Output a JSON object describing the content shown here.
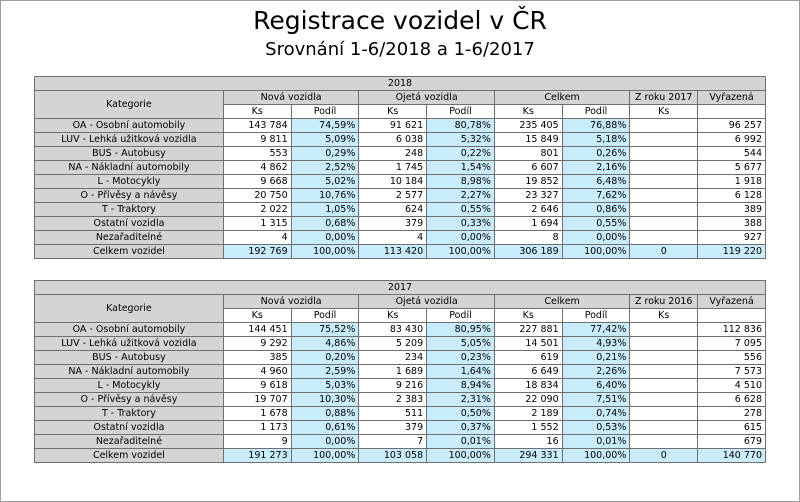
{
  "title": "Registrace vozidel v ČR",
  "subtitle": "Srovnání 1-6/2018 a 1-6/2017",
  "headers": {
    "kategorie": "Kategorie",
    "nova": "Nová vozidla",
    "ojeta": "Ojetá vozidla",
    "celkem": "Celkem",
    "vyrazena": "Vyřazená",
    "ks": "Ks",
    "podil": "Podíl"
  },
  "tables": [
    {
      "year": "2018",
      "zroku": "Z roku 2017",
      "rows": [
        {
          "cat": "OA - Osobní automobily",
          "nk": "143 784",
          "np": "74,59%",
          "ok": "91 621",
          "op": "80,78%",
          "ck": "235 405",
          "cp": "76,88%",
          "zk": "",
          "vk": "96 257"
        },
        {
          "cat": "LUV - Lehká užitková vozidla",
          "nk": "9 811",
          "np": "5,09%",
          "ok": "6 038",
          "op": "5,32%",
          "ck": "15 849",
          "cp": "5,18%",
          "zk": "",
          "vk": "6 992"
        },
        {
          "cat": "BUS - Autobusy",
          "nk": "553",
          "np": "0,29%",
          "ok": "248",
          "op": "0,22%",
          "ck": "801",
          "cp": "0,26%",
          "zk": "",
          "vk": "544"
        },
        {
          "cat": "NA - Nákladní automobily",
          "nk": "4 862",
          "np": "2,52%",
          "ok": "1 745",
          "op": "1,54%",
          "ck": "6 607",
          "cp": "2,16%",
          "zk": "",
          "vk": "5 677"
        },
        {
          "cat": "L - Motocykly",
          "nk": "9 668",
          "np": "5,02%",
          "ok": "10 184",
          "op": "8,98%",
          "ck": "19 852",
          "cp": "6,48%",
          "zk": "",
          "vk": "1 918"
        },
        {
          "cat": "O - Přívěsy a návěsy",
          "nk": "20 750",
          "np": "10,76%",
          "ok": "2 577",
          "op": "2,27%",
          "ck": "23 327",
          "cp": "7,62%",
          "zk": "",
          "vk": "6 128"
        },
        {
          "cat": "T - Traktory",
          "nk": "2 022",
          "np": "1,05%",
          "ok": "624",
          "op": "0,55%",
          "ck": "2 646",
          "cp": "0,86%",
          "zk": "",
          "vk": "389"
        },
        {
          "cat": "Ostatní vozidla",
          "nk": "1 315",
          "np": "0,68%",
          "ok": "379",
          "op": "0,33%",
          "ck": "1 694",
          "cp": "0,55%",
          "zk": "",
          "vk": "388"
        },
        {
          "cat": "Nezařaditelné",
          "nk": "4",
          "np": "0,00%",
          "ok": "4",
          "op": "0,00%",
          "ck": "8",
          "cp": "0,00%",
          "zk": "",
          "vk": "927"
        }
      ],
      "total": {
        "cat": "Celkem vozidel",
        "nk": "192 769",
        "np": "100,00%",
        "ok": "113 420",
        "op": "100,00%",
        "ck": "306 189",
        "cp": "100,00%",
        "zk": "0",
        "vk": "119 220"
      }
    },
    {
      "year": "2017",
      "zroku": "Z roku 2016",
      "rows": [
        {
          "cat": "OA - Osobní automobily",
          "nk": "144 451",
          "np": "75,52%",
          "ok": "83 430",
          "op": "80,95%",
          "ck": "227 881",
          "cp": "77,42%",
          "zk": "",
          "vk": "112 836"
        },
        {
          "cat": "LUV - Lehká užitková vozidla",
          "nk": "9 292",
          "np": "4,86%",
          "ok": "5 209",
          "op": "5,05%",
          "ck": "14 501",
          "cp": "4,93%",
          "zk": "",
          "vk": "7 095"
        },
        {
          "cat": "BUS - Autobusy",
          "nk": "385",
          "np": "0,20%",
          "ok": "234",
          "op": "0,23%",
          "ck": "619",
          "cp": "0,21%",
          "zk": "",
          "vk": "556"
        },
        {
          "cat": "NA - Nákladní automobily",
          "nk": "4 960",
          "np": "2,59%",
          "ok": "1 689",
          "op": "1,64%",
          "ck": "6 649",
          "cp": "2,26%",
          "zk": "",
          "vk": "7 573"
        },
        {
          "cat": "L - Motocykly",
          "nk": "9 618",
          "np": "5,03%",
          "ok": "9 216",
          "op": "8,94%",
          "ck": "18 834",
          "cp": "6,40%",
          "zk": "",
          "vk": "4 510"
        },
        {
          "cat": "O - Přívěsy a návěsy",
          "nk": "19 707",
          "np": "10,30%",
          "ok": "2 383",
          "op": "2,31%",
          "ck": "22 090",
          "cp": "7,51%",
          "zk": "",
          "vk": "6 628"
        },
        {
          "cat": "T - Traktory",
          "nk": "1 678",
          "np": "0,88%",
          "ok": "511",
          "op": "0,50%",
          "ck": "2 189",
          "cp": "0,74%",
          "zk": "",
          "vk": "278"
        },
        {
          "cat": "Ostatní vozidla",
          "nk": "1 173",
          "np": "0,61%",
          "ok": "379",
          "op": "0,37%",
          "ck": "1 552",
          "cp": "0,53%",
          "zk": "",
          "vk": "615"
        },
        {
          "cat": "Nezařaditelné",
          "nk": "9",
          "np": "0,00%",
          "ok": "7",
          "op": "0,01%",
          "ck": "16",
          "cp": "0,01%",
          "zk": "",
          "vk": "679"
        }
      ],
      "total": {
        "cat": "Celkem vozidel",
        "nk": "191 273",
        "np": "100,00%",
        "ok": "103 058",
        "op": "100,00%",
        "ck": "294 331",
        "cp": "100,00%",
        "zk": "0",
        "vk": "140 770"
      }
    }
  ]
}
